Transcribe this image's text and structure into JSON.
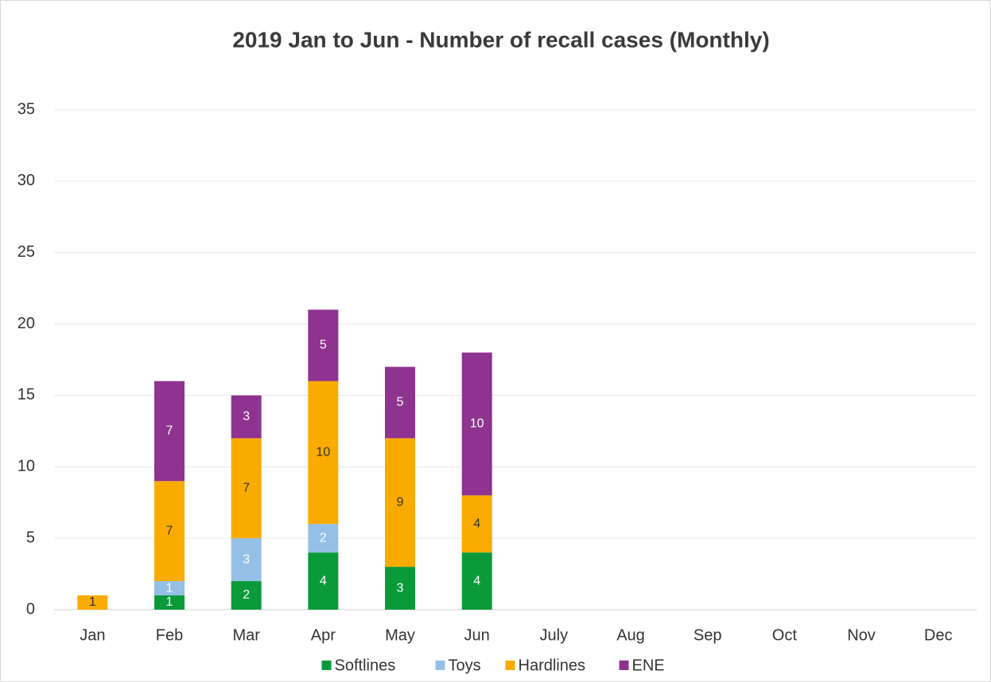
{
  "chart_data": {
    "type": "stacked_bar",
    "title": "2019 Jan to Jun - Number of recall cases (Monthly)",
    "categories": [
      "Jan",
      "Feb",
      "Mar",
      "Apr",
      "May",
      "Jun",
      "July",
      "Aug",
      "Sep",
      "Oct",
      "Nov",
      "Dec"
    ],
    "series": [
      {
        "name": "Softlines",
        "color": "#0a9a3a",
        "values": [
          null,
          1,
          2,
          4,
          3,
          4,
          null,
          null,
          null,
          null,
          null,
          null
        ]
      },
      {
        "name": "Toys",
        "color": "#95c0e6",
        "values": [
          null,
          1,
          3,
          2,
          null,
          null,
          null,
          null,
          null,
          null,
          null,
          null
        ]
      },
      {
        "name": "Hardlines",
        "color": "#f9ab00",
        "values": [
          1,
          7,
          7,
          10,
          9,
          4,
          null,
          null,
          null,
          null,
          null,
          null
        ]
      },
      {
        "name": "ENE",
        "color": "#8e338f",
        "values": [
          null,
          7,
          3,
          5,
          5,
          10,
          null,
          null,
          null,
          null,
          null,
          null
        ]
      }
    ],
    "ylim": [
      0,
      35
    ],
    "yticks": [
      0,
      5,
      10,
      15,
      20,
      25,
      30,
      35
    ],
    "grid": true,
    "legend": "bottom"
  }
}
